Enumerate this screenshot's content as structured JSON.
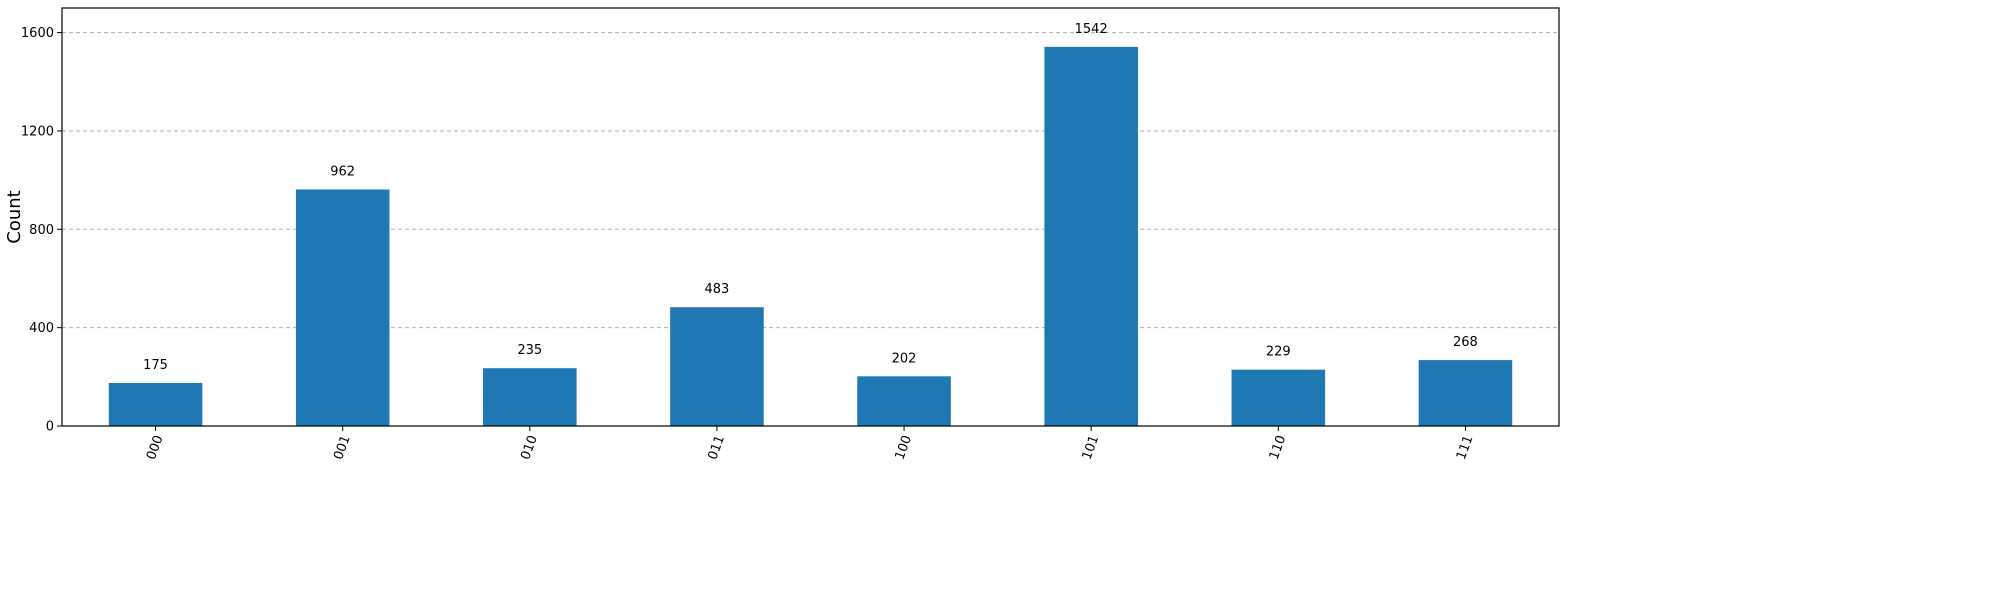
{
  "chart_data": {
    "type": "bar",
    "title": "",
    "xlabel": "",
    "ylabel": "Count",
    "categories": [
      "000",
      "001",
      "010",
      "011",
      "100",
      "101",
      "110",
      "111"
    ],
    "values": [
      175,
      962,
      235,
      483,
      202,
      1542,
      229,
      268
    ],
    "ylim": [
      0,
      1700
    ],
    "yticks": [
      0,
      400,
      800,
      1200,
      1600
    ],
    "grid": "horizontal-dashed",
    "bar_color": "#1f77b4",
    "x_tick_rotation_deg": 70
  }
}
